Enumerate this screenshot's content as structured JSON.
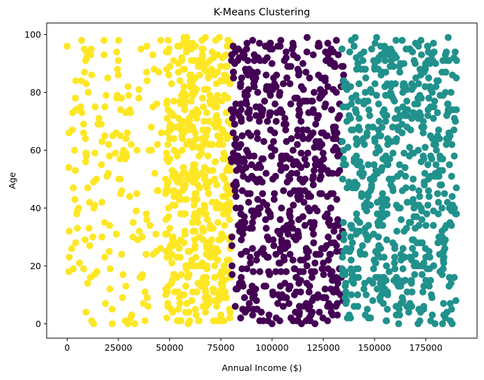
{
  "chart_data": {
    "type": "scatter",
    "title": "K-Means Clustering",
    "xlabel": "Annual Income ($)",
    "ylabel": "Age",
    "xlim": [
      -10000,
      200000
    ],
    "ylim": [
      -5,
      104
    ],
    "x_ticks": [
      0,
      25000,
      50000,
      75000,
      100000,
      125000,
      150000,
      175000
    ],
    "x_tick_labels": [
      "0",
      "25000",
      "50000",
      "75000",
      "100000",
      "125000",
      "150000",
      "175000"
    ],
    "y_ticks": [
      0,
      20,
      40,
      60,
      80,
      100
    ],
    "y_tick_labels": [
      "0",
      "20",
      "40",
      "60",
      "80",
      "100"
    ],
    "grid": false,
    "legend": "none",
    "clusters": [
      {
        "color": "#fde725",
        "x_range": [
          0,
          80000
        ],
        "y_range": [
          0,
          99
        ],
        "approx_count": 700,
        "sample_points": [
          [
            0,
            96
          ],
          [
            1000,
            32
          ],
          [
            1000,
            23
          ],
          [
            3000,
            19
          ],
          [
            3000,
            47
          ],
          [
            4000,
            78
          ],
          [
            4000,
            53
          ],
          [
            5000,
            39
          ],
          [
            5000,
            33
          ],
          [
            6000,
            21
          ],
          [
            7000,
            84
          ],
          [
            8000,
            66
          ],
          [
            8000,
            69
          ],
          [
            9000,
            91
          ],
          [
            9000,
            56
          ],
          [
            10000,
            47
          ],
          [
            11000,
            27
          ],
          [
            12000,
            86
          ],
          [
            12000,
            1
          ],
          [
            13000,
            40
          ],
          [
            15000,
            69
          ],
          [
            17000,
            63
          ],
          [
            18000,
            93
          ],
          [
            19000,
            79
          ],
          [
            20000,
            52
          ],
          [
            21000,
            19
          ],
          [
            22000,
            0
          ],
          [
            24000,
            31
          ],
          [
            26000,
            65
          ],
          [
            27000,
            9
          ],
          [
            29000,
            58
          ],
          [
            30000,
            79
          ],
          [
            31000,
            73
          ],
          [
            33000,
            0
          ],
          [
            34000,
            45
          ],
          [
            36000,
            95
          ],
          [
            38000,
            11
          ],
          [
            40000,
            60
          ],
          [
            42000,
            24
          ],
          [
            44000,
            46
          ],
          [
            46000,
            66
          ],
          [
            48000,
            31
          ],
          [
            50000,
            68
          ],
          [
            52000,
            91
          ],
          [
            54000,
            49
          ],
          [
            55000,
            7
          ],
          [
            57000,
            99
          ],
          [
            58000,
            20
          ],
          [
            60000,
            84
          ],
          [
            62000,
            37
          ],
          [
            63000,
            3
          ],
          [
            65000,
            61
          ],
          [
            66000,
            93
          ],
          [
            68000,
            27
          ],
          [
            70000,
            76
          ],
          [
            72000,
            50
          ],
          [
            73000,
            1
          ],
          [
            75000,
            89
          ],
          [
            76000,
            40
          ],
          [
            78000,
            64
          ]
        ]
      },
      {
        "color": "#440154",
        "x_range": [
          80000,
          135000
        ],
        "y_range": [
          0,
          99
        ],
        "approx_count": 650,
        "sample_points": [
          [
            81000,
            96
          ],
          [
            82000,
            46
          ],
          [
            83000,
            12
          ],
          [
            84000,
            72
          ],
          [
            85000,
            29
          ],
          [
            87000,
            88
          ],
          [
            88000,
            5
          ],
          [
            90000,
            55
          ],
          [
            91000,
            37
          ],
          [
            93000,
            80
          ],
          [
            94000,
            18
          ],
          [
            96000,
            63
          ],
          [
            98000,
            1
          ],
          [
            99000,
            97
          ],
          [
            101000,
            43
          ],
          [
            102000,
            70
          ],
          [
            104000,
            25
          ],
          [
            106000,
            91
          ],
          [
            107000,
            9
          ],
          [
            109000,
            57
          ],
          [
            110000,
            33
          ],
          [
            112000,
            78
          ],
          [
            114000,
            15
          ],
          [
            115000,
            49
          ],
          [
            117000,
            94
          ],
          [
            119000,
            3
          ],
          [
            120000,
            66
          ],
          [
            122000,
            39
          ],
          [
            124000,
            85
          ],
          [
            125000,
            21
          ],
          [
            127000,
            53
          ],
          [
            129000,
            74
          ],
          [
            130000,
            11
          ],
          [
            132000,
            60
          ],
          [
            133000,
            30
          ],
          [
            134000,
            89
          ]
        ]
      },
      {
        "color": "#21918c",
        "x_range": [
          134000,
          190000
        ],
        "y_range": [
          0,
          99
        ],
        "approx_count": 650,
        "sample_points": [
          [
            135000,
            84
          ],
          [
            136000,
            7
          ],
          [
            137000,
            61
          ],
          [
            139000,
            33
          ],
          [
            140000,
            96
          ],
          [
            142000,
            19
          ],
          [
            143000,
            52
          ],
          [
            145000,
            77
          ],
          [
            147000,
            2
          ],
          [
            148000,
            41
          ],
          [
            150000,
            88
          ],
          [
            152000,
            26
          ],
          [
            153000,
            65
          ],
          [
            155000,
            12
          ],
          [
            157000,
            93
          ],
          [
            158000,
            48
          ],
          [
            160000,
            71
          ],
          [
            162000,
            5
          ],
          [
            163000,
            36
          ],
          [
            165000,
            82
          ],
          [
            167000,
            58
          ],
          [
            168000,
            15
          ],
          [
            170000,
            97
          ],
          [
            172000,
            44
          ],
          [
            173000,
            68
          ],
          [
            175000,
            23
          ],
          [
            177000,
            90
          ],
          [
            178000,
            9
          ],
          [
            180000,
            55
          ],
          [
            182000,
            79
          ],
          [
            183000,
            30
          ],
          [
            185000,
            62
          ],
          [
            187000,
            1
          ],
          [
            188000,
            86
          ],
          [
            189000,
            40
          ],
          [
            190000,
            91
          ]
        ]
      }
    ]
  }
}
